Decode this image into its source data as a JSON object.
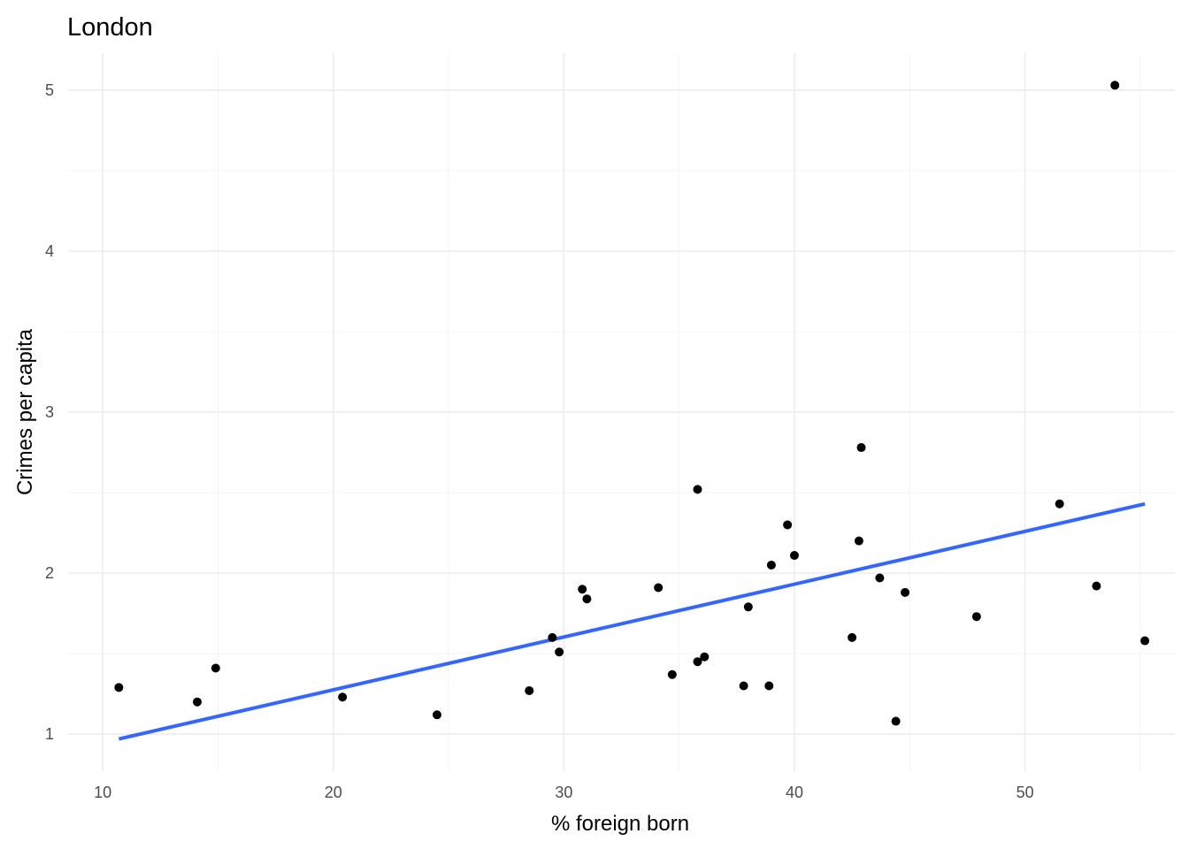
{
  "chart_data": {
    "type": "scatter",
    "title": "London",
    "xlabel": "% foreign born",
    "ylabel": "Crimes per capita",
    "xlim": [
      8.5,
      56.5
    ],
    "ylim": [
      0.77,
      5.23
    ],
    "x_ticks": [
      10,
      20,
      30,
      40,
      50
    ],
    "y_ticks": [
      1,
      2,
      3,
      4,
      5
    ],
    "x_tick_labels": [
      "10",
      "20",
      "30",
      "40",
      "50"
    ],
    "y_tick_labels": [
      "1",
      "2",
      "3",
      "4",
      "5"
    ],
    "grid": true,
    "points": [
      {
        "x": 10.7,
        "y": 1.29
      },
      {
        "x": 14.1,
        "y": 1.2
      },
      {
        "x": 14.9,
        "y": 1.41
      },
      {
        "x": 20.4,
        "y": 1.23
      },
      {
        "x": 24.5,
        "y": 1.12
      },
      {
        "x": 28.5,
        "y": 1.27
      },
      {
        "x": 29.5,
        "y": 1.6
      },
      {
        "x": 29.8,
        "y": 1.51
      },
      {
        "x": 30.8,
        "y": 1.9
      },
      {
        "x": 31.0,
        "y": 1.84
      },
      {
        "x": 34.1,
        "y": 1.91
      },
      {
        "x": 34.7,
        "y": 1.37
      },
      {
        "x": 35.8,
        "y": 2.52
      },
      {
        "x": 35.8,
        "y": 1.45
      },
      {
        "x": 36.1,
        "y": 1.48
      },
      {
        "x": 37.8,
        "y": 1.3
      },
      {
        "x": 38.0,
        "y": 1.79
      },
      {
        "x": 38.9,
        "y": 1.3
      },
      {
        "x": 39.0,
        "y": 2.05
      },
      {
        "x": 39.7,
        "y": 2.3
      },
      {
        "x": 40.0,
        "y": 2.11
      },
      {
        "x": 42.5,
        "y": 1.6
      },
      {
        "x": 42.8,
        "y": 2.2
      },
      {
        "x": 42.9,
        "y": 2.78
      },
      {
        "x": 43.7,
        "y": 1.97
      },
      {
        "x": 44.4,
        "y": 1.08
      },
      {
        "x": 44.8,
        "y": 1.88
      },
      {
        "x": 47.9,
        "y": 1.73
      },
      {
        "x": 51.5,
        "y": 2.43
      },
      {
        "x": 53.1,
        "y": 1.92
      },
      {
        "x": 53.9,
        "y": 5.03
      },
      {
        "x": 55.2,
        "y": 1.58
      }
    ],
    "trend_line": {
      "type": "linear",
      "color": "#3366ff",
      "x": [
        10.7,
        55.2
      ],
      "y": [
        0.97,
        2.43
      ]
    },
    "point_color": "#000000"
  }
}
